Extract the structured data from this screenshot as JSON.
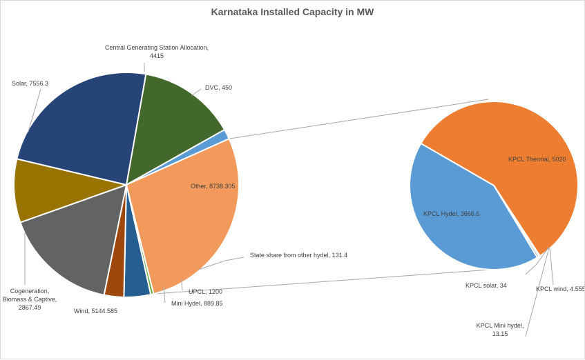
{
  "chart_data": {
    "type": "pie",
    "title": "Karnataka Installed Capacity in MW",
    "main": {
      "slices": [
        {
          "label": "Central Generating Station Allocation, 4415",
          "value": 4415,
          "color": "#43682b"
        },
        {
          "label": "DVC, 450",
          "value": 450,
          "color": "#5b9bd5"
        },
        {
          "label": "Other, 8738.305",
          "value": 8738.305,
          "color": "#f19a5b"
        },
        {
          "label": "State share from other hydel, 131.4",
          "value": 131.4,
          "color": "#70ad47"
        },
        {
          "label": "UPCL, 1200",
          "value": 1200,
          "color": "#255e91"
        },
        {
          "label": "Mini Hydel, 889.85",
          "value": 889.85,
          "color": "#9e480e"
        },
        {
          "label": "Wind, 5144.585",
          "value": 5144.585,
          "color": "#636363"
        },
        {
          "label": "Cogeneration, Biomass & Captive, 2867.49",
          "value": 2867.49,
          "color": "#997300"
        },
        {
          "label": "Solar, 7556.3",
          "value": 7556.3,
          "color": "#264478"
        }
      ]
    },
    "secondary": {
      "slices": [
        {
          "label": "KPCL Thermal, 5020",
          "value": 5020,
          "color": "#ed7d31"
        },
        {
          "label": "KPCL wind, 4.555",
          "value": 4.555,
          "color": "#ffc000"
        },
        {
          "label": "KPCL Mini hydel, 13.15",
          "value": 13.15,
          "color": "#4472c4"
        },
        {
          "label": "KPCL solar, 34",
          "value": 34,
          "color": "#a5a5a5"
        },
        {
          "label": "KPCL Hydel, 3666.6",
          "value": 3666.6,
          "color": "#5b9bd5"
        }
      ]
    }
  }
}
